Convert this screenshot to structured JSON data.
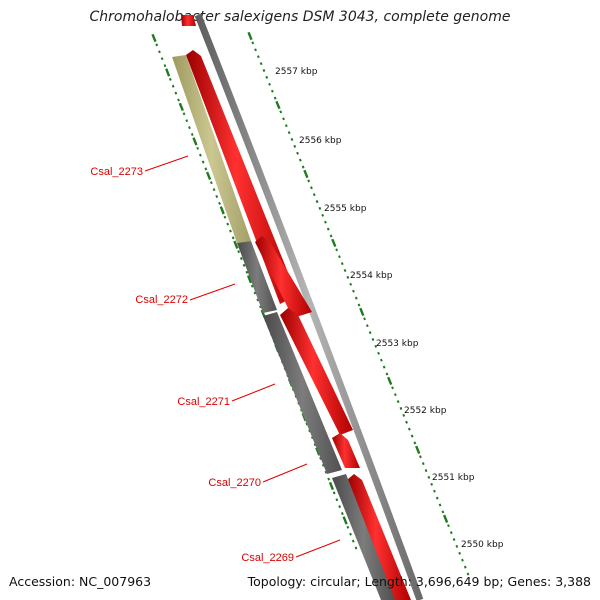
{
  "header": {
    "title": "Chromohalobacter salexigens DSM 3043, complete genome"
  },
  "footer": {
    "accession": "Accession: NC_007963",
    "summary": "Topology: circular; Length: 3,696,649 bp; Genes: 3,388"
  },
  "ruler": {
    "tick_labels": [
      "2557 kbp",
      "2556 kbp",
      "2555 kbp",
      "2554 kbp",
      "2553 kbp",
      "2552 kbp",
      "2551 kbp",
      "2550 kbp"
    ]
  },
  "genes": {
    "labels": [
      "Csal_2273",
      "Csal_2272",
      "Csal_2271",
      "Csal_2270",
      "Csal_2269"
    ]
  },
  "colors": {
    "cds": "#ff0000",
    "gene_gray": "#666666",
    "gene_olive": "#b8b47a",
    "backbone": "#8a8a8a",
    "ruler_ticks": "#1e7a1e",
    "gene_label": "#dd0000"
  }
}
